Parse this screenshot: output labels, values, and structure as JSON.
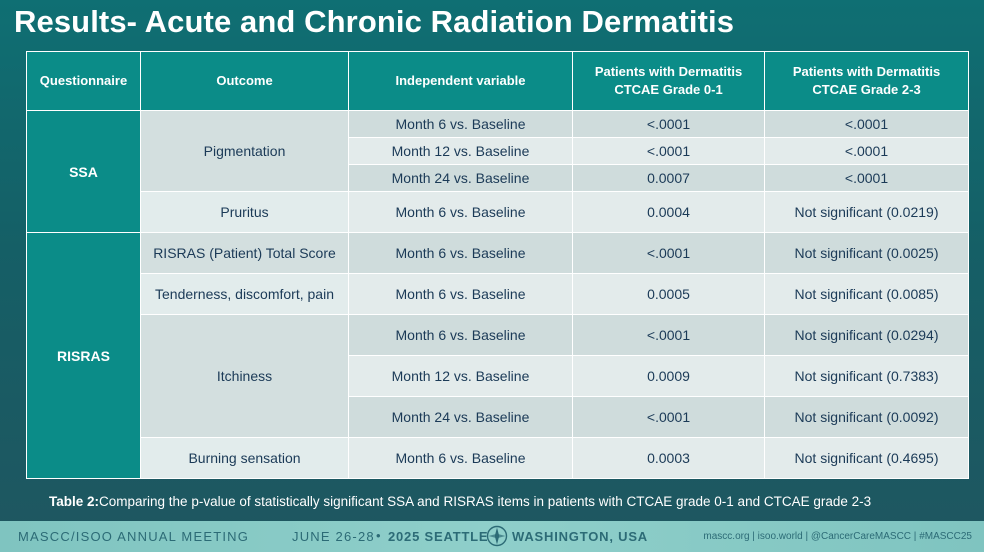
{
  "title": "Results- Acute and Chronic Radiation Dermatitis",
  "table": {
    "headers": {
      "questionnaire": "Questionnaire",
      "outcome": "Outcome",
      "independent_variable": "Independent variable",
      "grade01_line1": "Patients with Dermatitis",
      "grade01_line2": "CTCAE Grade 0-1",
      "grade23_line1": "Patients with Dermatitis",
      "grade23_line2": "CTCAE Grade 2-3"
    },
    "groups": {
      "ssa": "SSA",
      "risras": "RISRAS"
    },
    "outcomes": {
      "pigmentation": "Pigmentation",
      "pruritus": "Pruritus",
      "risras_total": "RISRAS (Patient) Total Score",
      "tenderness": "Tenderness, discomfort, pain",
      "itchiness": "Itchiness",
      "burning": "Burning sensation"
    },
    "rows": [
      {
        "variable": "Month 6 vs. Baseline",
        "grade01": "<.0001",
        "grade23": "<.0001"
      },
      {
        "variable": "Month 12 vs. Baseline",
        "grade01": "<.0001",
        "grade23": "<.0001"
      },
      {
        "variable": "Month 24 vs. Baseline",
        "grade01": "0.0007",
        "grade23": "<.0001"
      },
      {
        "variable": "Month 6 vs. Baseline",
        "grade01": "0.0004",
        "grade23": "Not significant  (0.0219)"
      },
      {
        "variable": "Month 6 vs. Baseline",
        "grade01": "<.0001",
        "grade23": "Not significant (0.0025)"
      },
      {
        "variable": "Month 6 vs. Baseline",
        "grade01": "0.0005",
        "grade23": "Not significant (0.0085)"
      },
      {
        "variable": "Month 6 vs. Baseline",
        "grade01": "<.0001",
        "grade23": "Not significant (0.0294)"
      },
      {
        "variable": "Month 12 vs. Baseline",
        "grade01": "0.0009",
        "grade23": "Not significant (0.7383)"
      },
      {
        "variable": "Month 24 vs. Baseline",
        "grade01": "<.0001",
        "grade23": "Not significant (0.0092)"
      },
      {
        "variable": "Month 6 vs. Baseline",
        "grade01": "0.0003",
        "grade23": "Not significant (0.4695)"
      }
    ]
  },
  "caption": {
    "label": "Table 2:",
    "text": "Comparing the p-value of statistically significant SSA and RISRAS items in patients with CTCAE grade 0-1 and CTCAE grade 2-3"
  },
  "footer": {
    "meeting": "MASCC/ISOO ANNUAL MEETING",
    "dates": "JUNE 26-28",
    "separator": "•",
    "year_city": "2025 SEATTLE",
    "state": "WASHINGTON, USA",
    "links": "mascc.org | isoo.world | @CancerCareMASCC | #MASCC25"
  },
  "colors": {
    "header_teal": "#0b8c88",
    "background": "#155f66",
    "row_shade": "#cfdcdc",
    "row_light": "#e3ebeb",
    "text_navy": "#1b3a57",
    "footer": "#8fcfca"
  }
}
